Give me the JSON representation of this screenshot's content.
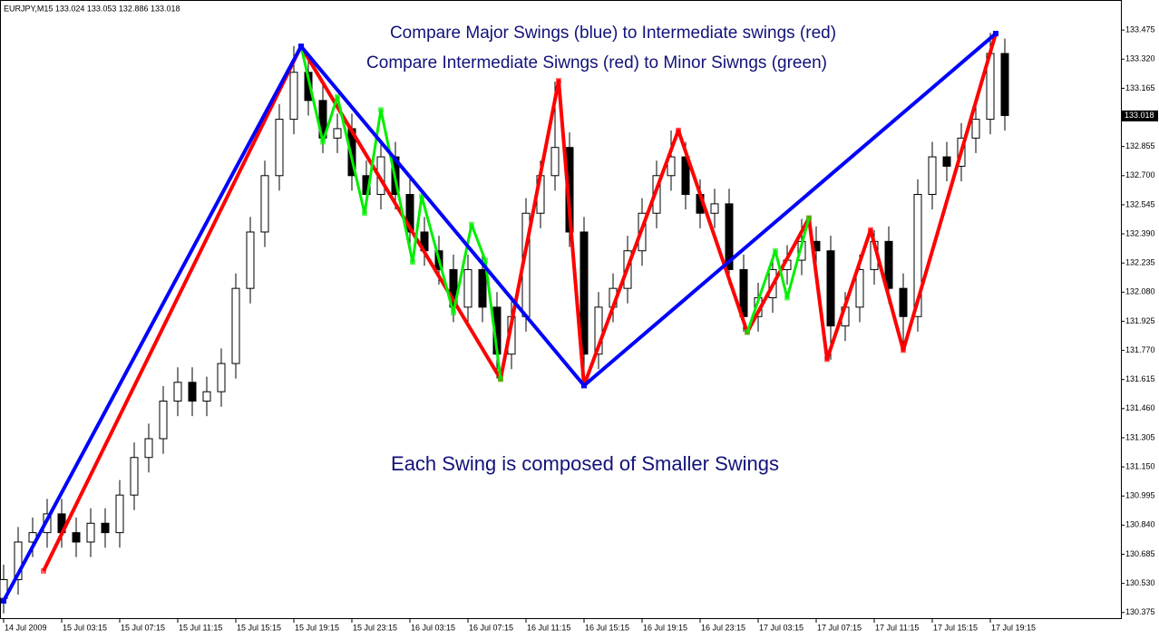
{
  "chart_data": {
    "type": "candlestick",
    "title": "EURJPY,M15  133.024 133.053 132.886 133.018",
    "annotations": [
      "Compare Major Swings (blue) to  Intermediate swings (red)",
      "Compare Intermediate Siwngs (red) to Minor Siwngs (green)",
      "Each Swing is composed of Smaller Swings"
    ],
    "current_price": 133.018,
    "xlim": [
      -1,
      308
    ],
    "xticks": [
      {
        "value": 0,
        "label": "14 Jul 2009"
      },
      {
        "value": 16,
        "label": "15 Jul 03:15"
      },
      {
        "value": 32,
        "label": "15 Jul 07:15"
      },
      {
        "value": 48,
        "label": "15 Jul 11:15"
      },
      {
        "value": 64,
        "label": "15 Jul 15:15"
      },
      {
        "value": 80,
        "label": "15 Jul 19:15"
      },
      {
        "value": 96,
        "label": "15 Jul 23:15"
      },
      {
        "value": 112,
        "label": "16 Jul 03:15"
      },
      {
        "value": 128,
        "label": "16 Jul 07:15"
      },
      {
        "value": 144,
        "label": "16 Jul 11:15"
      },
      {
        "value": 160,
        "label": "16 Jul 15:15"
      },
      {
        "value": 176,
        "label": "16 Jul 19:15"
      },
      {
        "value": 192,
        "label": "16 Jul 23:15"
      },
      {
        "value": 208,
        "label": "17 Jul 03:15"
      },
      {
        "value": 224,
        "label": "17 Jul 07:15"
      },
      {
        "value": 240,
        "label": "17 Jul 11:15"
      },
      {
        "value": 256,
        "label": "17 Jul 15:15"
      },
      {
        "value": 272,
        "label": "17 Jul 19:15"
      }
    ],
    "ylim": [
      130.34,
      133.63
    ],
    "yticks": [
      {
        "value": 133.475,
        "label": "133.475"
      },
      {
        "value": 133.32,
        "label": "133.320"
      },
      {
        "value": 133.165,
        "label": "133.165"
      },
      {
        "value": 132.855,
        "label": "132.855"
      },
      {
        "value": 132.7,
        "label": "132.700"
      },
      {
        "value": 132.545,
        "label": "132.545"
      },
      {
        "value": 132.39,
        "label": "132.390"
      },
      {
        "value": 132.235,
        "label": "132.235"
      },
      {
        "value": 132.08,
        "label": "132.080"
      },
      {
        "value": 131.925,
        "label": "131.925"
      },
      {
        "value": 131.77,
        "label": "131.770"
      },
      {
        "value": 131.615,
        "label": "131.615"
      },
      {
        "value": 131.46,
        "label": "131.460"
      },
      {
        "value": 131.305,
        "label": "131.305"
      },
      {
        "value": 131.15,
        "label": "131.150"
      },
      {
        "value": 130.995,
        "label": "130.995"
      },
      {
        "value": 130.84,
        "label": "130.840"
      },
      {
        "value": 130.685,
        "label": "130.685"
      },
      {
        "value": 130.53,
        "label": "130.530"
      },
      {
        "value": 130.375,
        "label": "130.375"
      }
    ],
    "candles": {
      "x": [
        0,
        4,
        8,
        12,
        16,
        20,
        24,
        28,
        32,
        36,
        40,
        44,
        48,
        52,
        56,
        60,
        64,
        68,
        72,
        76,
        80,
        84,
        88,
        92,
        96,
        100,
        104,
        108,
        112,
        116,
        120,
        124,
        128,
        132,
        136,
        140,
        144,
        148,
        152,
        156,
        160,
        164,
        168,
        172,
        176,
        180,
        184,
        188,
        192,
        196,
        200,
        204,
        208,
        212,
        216,
        220,
        224,
        228,
        232,
        236,
        240,
        244,
        248,
        252,
        256,
        260,
        264,
        268,
        272,
        276
      ],
      "open": [
        130.45,
        130.55,
        130.75,
        130.8,
        130.9,
        130.8,
        130.75,
        130.85,
        130.8,
        131.0,
        131.2,
        131.3,
        131.5,
        131.6,
        131.5,
        131.55,
        131.7,
        132.1,
        132.4,
        132.7,
        133.0,
        133.25,
        133.1,
        132.9,
        132.95,
        132.7,
        132.6,
        132.8,
        132.6,
        132.4,
        132.3,
        132.2,
        132.0,
        132.2,
        132.0,
        131.75,
        131.95,
        132.5,
        132.7,
        132.85,
        132.4,
        131.75,
        132.0,
        132.1,
        132.3,
        132.5,
        132.7,
        132.8,
        132.6,
        132.5,
        132.55,
        132.2,
        131.95,
        132.05,
        132.2,
        132.25,
        132.35,
        132.3,
        131.9,
        132.0,
        132.2,
        132.35,
        132.1,
        131.95,
        132.6,
        132.8,
        132.75,
        132.9,
        133.0,
        133.35
      ],
      "high": [
        130.63,
        130.83,
        130.88,
        130.98,
        130.98,
        130.88,
        130.93,
        130.93,
        131.08,
        131.28,
        131.38,
        131.58,
        131.68,
        131.68,
        131.63,
        131.78,
        132.18,
        132.48,
        132.78,
        133.08,
        133.39,
        133.33,
        133.18,
        133.03,
        133.03,
        132.78,
        132.88,
        132.88,
        132.68,
        132.48,
        132.38,
        132.28,
        132.28,
        132.28,
        132.08,
        132.03,
        132.58,
        132.78,
        133.2,
        132.93,
        132.48,
        132.08,
        132.18,
        132.38,
        132.58,
        132.78,
        132.94,
        132.88,
        132.68,
        132.63,
        132.63,
        132.28,
        132.13,
        132.28,
        132.33,
        132.47,
        132.43,
        132.38,
        132.08,
        132.28,
        132.41,
        132.43,
        132.18,
        132.68,
        132.88,
        132.88,
        132.98,
        133.08,
        133.46,
        133.43
      ],
      "low": [
        130.37,
        130.47,
        130.67,
        130.72,
        130.72,
        130.67,
        130.67,
        130.72,
        130.72,
        130.92,
        131.12,
        131.22,
        131.42,
        131.42,
        131.42,
        131.47,
        131.62,
        132.02,
        132.32,
        132.62,
        132.92,
        133.02,
        132.82,
        132.82,
        132.62,
        132.52,
        132.52,
        132.52,
        132.32,
        132.22,
        132.12,
        131.92,
        131.92,
        131.92,
        131.62,
        131.67,
        131.87,
        132.42,
        132.62,
        132.32,
        131.58,
        131.67,
        131.92,
        132.02,
        132.22,
        132.42,
        132.62,
        132.52,
        132.42,
        132.42,
        132.12,
        131.87,
        131.87,
        131.97,
        132.12,
        132.17,
        132.22,
        131.72,
        131.82,
        131.92,
        132.12,
        132.02,
        131.77,
        131.87,
        132.52,
        132.67,
        132.67,
        132.82,
        132.92,
        132.94
      ],
      "close": [
        130.55,
        130.75,
        130.8,
        130.9,
        130.8,
        130.75,
        130.85,
        130.8,
        131.0,
        131.2,
        131.3,
        131.5,
        131.6,
        131.5,
        131.55,
        131.7,
        132.1,
        132.4,
        132.7,
        133.0,
        133.25,
        133.1,
        132.9,
        132.95,
        132.7,
        132.6,
        132.8,
        132.6,
        132.4,
        132.3,
        132.2,
        132.0,
        132.2,
        132.0,
        131.75,
        131.95,
        132.5,
        132.7,
        132.85,
        132.4,
        131.75,
        132.0,
        132.1,
        132.3,
        132.5,
        132.7,
        132.8,
        132.6,
        132.5,
        132.55,
        132.2,
        131.95,
        132.05,
        132.2,
        132.25,
        132.35,
        132.3,
        131.9,
        132.0,
        132.2,
        132.35,
        132.1,
        131.95,
        132.6,
        132.8,
        132.75,
        132.9,
        133.0,
        133.35,
        133.02
      ]
    },
    "series": [
      {
        "color": "#ff0000",
        "x": [
          11,
          82,
          137,
          153,
          160,
          186,
          205,
          222,
          227,
          239,
          248,
          273.5
        ],
        "values": [
          130.596,
          133.388,
          131.617,
          133.205,
          131.583,
          132.941,
          131.867,
          132.474,
          131.723,
          132.411,
          131.771,
          133.456
        ]
      },
      {
        "color": "#00ee00",
        "x": [
          82,
          88,
          92,
          99.5,
          104,
          112.75,
          115.25,
          124,
          129,
          132.75,
          137
        ],
        "values": [
          133.388,
          132.88,
          133.12,
          132.5,
          133.05,
          132.24,
          132.59,
          131.97,
          132.44,
          132.25,
          131.617
        ]
      },
      {
        "color": "#00ee00",
        "x": [
          205,
          212.75,
          216,
          222
        ],
        "values": [
          131.867,
          132.3,
          132.05,
          132.474
        ]
      },
      {
        "color": "#0000ff",
        "x": [
          0,
          82,
          160,
          273.5
        ],
        "values": [
          130.437,
          133.388,
          131.583,
          133.456
        ]
      }
    ]
  }
}
